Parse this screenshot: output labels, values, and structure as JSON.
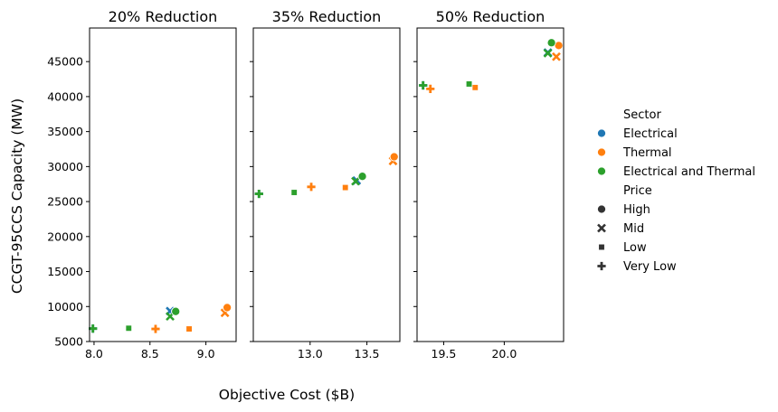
{
  "figure": {
    "xlabel": "Objective Cost ($B)",
    "ylabel": "CCGT-95CCS Capacity (MW)"
  },
  "colors": {
    "Electrical": "#1f77b4",
    "Thermal": "#ff7f0e",
    "Electrical and Thermal": "#2ca02c"
  },
  "legend": {
    "sector_title": "Sector",
    "sectors": [
      "Electrical",
      "Thermal",
      "Electrical and Thermal"
    ],
    "price_title": "Price",
    "prices": [
      "High",
      "Mid",
      "Low",
      "Very Low"
    ],
    "price_markers": {
      "High": "circle",
      "Mid": "x",
      "Low": "square",
      "Very Low": "plus"
    },
    "placement": "right"
  },
  "chart_data": [
    {
      "type": "scatter",
      "title": "20% Reduction",
      "xlim": [
        7.96,
        9.27
      ],
      "ylim": [
        5000,
        49800
      ],
      "xticks": [
        "8.0",
        "8.5",
        "9.0"
      ],
      "yticks": [
        "5000",
        "10000",
        "15000",
        "20000",
        "25000",
        "30000",
        "35000",
        "40000",
        "45000"
      ],
      "points": [
        {
          "sector": "Electrical",
          "price": "High",
          "x": 8.73,
          "y": 9300
        },
        {
          "sector": "Electrical",
          "price": "Mid",
          "x": 8.68,
          "y": 9350
        },
        {
          "sector": "Electrical",
          "price": "Low",
          "x": 8.31,
          "y": 6900
        },
        {
          "sector": "Electrical",
          "price": "Very Low",
          "x": 7.99,
          "y": 6850
        },
        {
          "sector": "Thermal",
          "price": "High",
          "x": 9.19,
          "y": 9850
        },
        {
          "sector": "Thermal",
          "price": "Mid",
          "x": 9.17,
          "y": 9100
        },
        {
          "sector": "Thermal",
          "price": "Low",
          "x": 8.85,
          "y": 6800
        },
        {
          "sector": "Thermal",
          "price": "Very Low",
          "x": 8.55,
          "y": 6800
        },
        {
          "sector": "Electrical and Thermal",
          "price": "High",
          "x": 8.73,
          "y": 9300
        },
        {
          "sector": "Electrical and Thermal",
          "price": "Mid",
          "x": 8.68,
          "y": 8600
        },
        {
          "sector": "Electrical and Thermal",
          "price": "Low",
          "x": 8.31,
          "y": 6900
        },
        {
          "sector": "Electrical and Thermal",
          "price": "Very Low",
          "x": 7.99,
          "y": 6850
        }
      ]
    },
    {
      "type": "scatter",
      "title": "35% Reduction",
      "xlim": [
        12.5,
        13.79
      ],
      "ylim": [
        5000,
        49800
      ],
      "xticks": [
        "13.0",
        "13.5"
      ],
      "yticks": [],
      "points": [
        {
          "sector": "Electrical",
          "price": "High",
          "x": 13.46,
          "y": 28700
        },
        {
          "sector": "Electrical",
          "price": "Mid",
          "x": 13.41,
          "y": 28000
        },
        {
          "sector": "Electrical",
          "price": "Low",
          "x": 12.86,
          "y": 26300
        },
        {
          "sector": "Electrical",
          "price": "Very Low",
          "x": 12.55,
          "y": 26100
        },
        {
          "sector": "Thermal",
          "price": "High",
          "x": 13.74,
          "y": 31400
        },
        {
          "sector": "Thermal",
          "price": "Mid",
          "x": 13.73,
          "y": 30800
        },
        {
          "sector": "Thermal",
          "price": "Low",
          "x": 13.31,
          "y": 27000
        },
        {
          "sector": "Thermal",
          "price": "Very Low",
          "x": 13.01,
          "y": 27100
        },
        {
          "sector": "Electrical and Thermal",
          "price": "High",
          "x": 13.46,
          "y": 28600
        },
        {
          "sector": "Electrical and Thermal",
          "price": "Mid",
          "x": 13.4,
          "y": 27900
        },
        {
          "sector": "Electrical and Thermal",
          "price": "Low",
          "x": 12.86,
          "y": 26300
        },
        {
          "sector": "Electrical and Thermal",
          "price": "Very Low",
          "x": 12.55,
          "y": 26100
        }
      ]
    },
    {
      "type": "scatter",
      "title": "50% Reduction",
      "xlim": [
        19.28,
        20.49
      ],
      "ylim": [
        5000,
        49800
      ],
      "xticks": [
        "19.5",
        "20.0"
      ],
      "yticks": [],
      "points": [
        {
          "sector": "Electrical",
          "price": "High",
          "x": 20.39,
          "y": 47600
        },
        {
          "sector": "Electrical",
          "price": "Mid",
          "x": 20.36,
          "y": 46300
        },
        {
          "sector": "Electrical",
          "price": "Low",
          "x": 19.71,
          "y": 41800
        },
        {
          "sector": "Electrical",
          "price": "Very Low",
          "x": 19.33,
          "y": 41600
        },
        {
          "sector": "Thermal",
          "price": "High",
          "x": 20.45,
          "y": 47300
        },
        {
          "sector": "Thermal",
          "price": "Mid",
          "x": 20.43,
          "y": 45700
        },
        {
          "sector": "Thermal",
          "price": "Low",
          "x": 19.76,
          "y": 41300
        },
        {
          "sector": "Thermal",
          "price": "Very Low",
          "x": 19.39,
          "y": 41100
        },
        {
          "sector": "Electrical and Thermal",
          "price": "High",
          "x": 20.39,
          "y": 47700
        },
        {
          "sector": "Electrical and Thermal",
          "price": "Mid",
          "x": 20.36,
          "y": 46200
        },
        {
          "sector": "Electrical and Thermal",
          "price": "Low",
          "x": 19.71,
          "y": 41800
        },
        {
          "sector": "Electrical and Thermal",
          "price": "Very Low",
          "x": 19.33,
          "y": 41600
        }
      ]
    }
  ]
}
